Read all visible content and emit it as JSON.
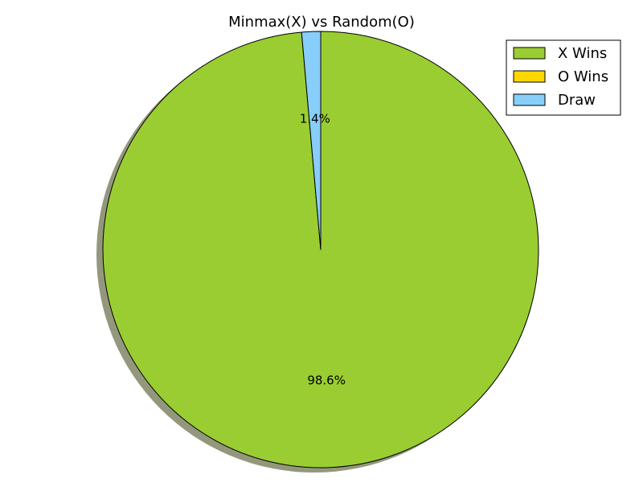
{
  "chart_data": {
    "type": "pie",
    "title": "Minmax(X) vs Random(O)",
    "categories": [
      "X Wins",
      "O Wins",
      "Draw"
    ],
    "values": [
      98.6,
      0.0,
      1.4
    ],
    "value_labels": [
      "98.6%",
      "",
      "1.4%"
    ],
    "colors": [
      "#9acd32",
      "#ffd700",
      "#87cefa"
    ],
    "shadow": true,
    "shadow_color": "#93987d",
    "start_angle_deg": 90,
    "direction": "clockwise",
    "legend": {
      "location": "top-right",
      "entries": [
        "X Wins",
        "O Wins",
        "Draw"
      ]
    }
  }
}
